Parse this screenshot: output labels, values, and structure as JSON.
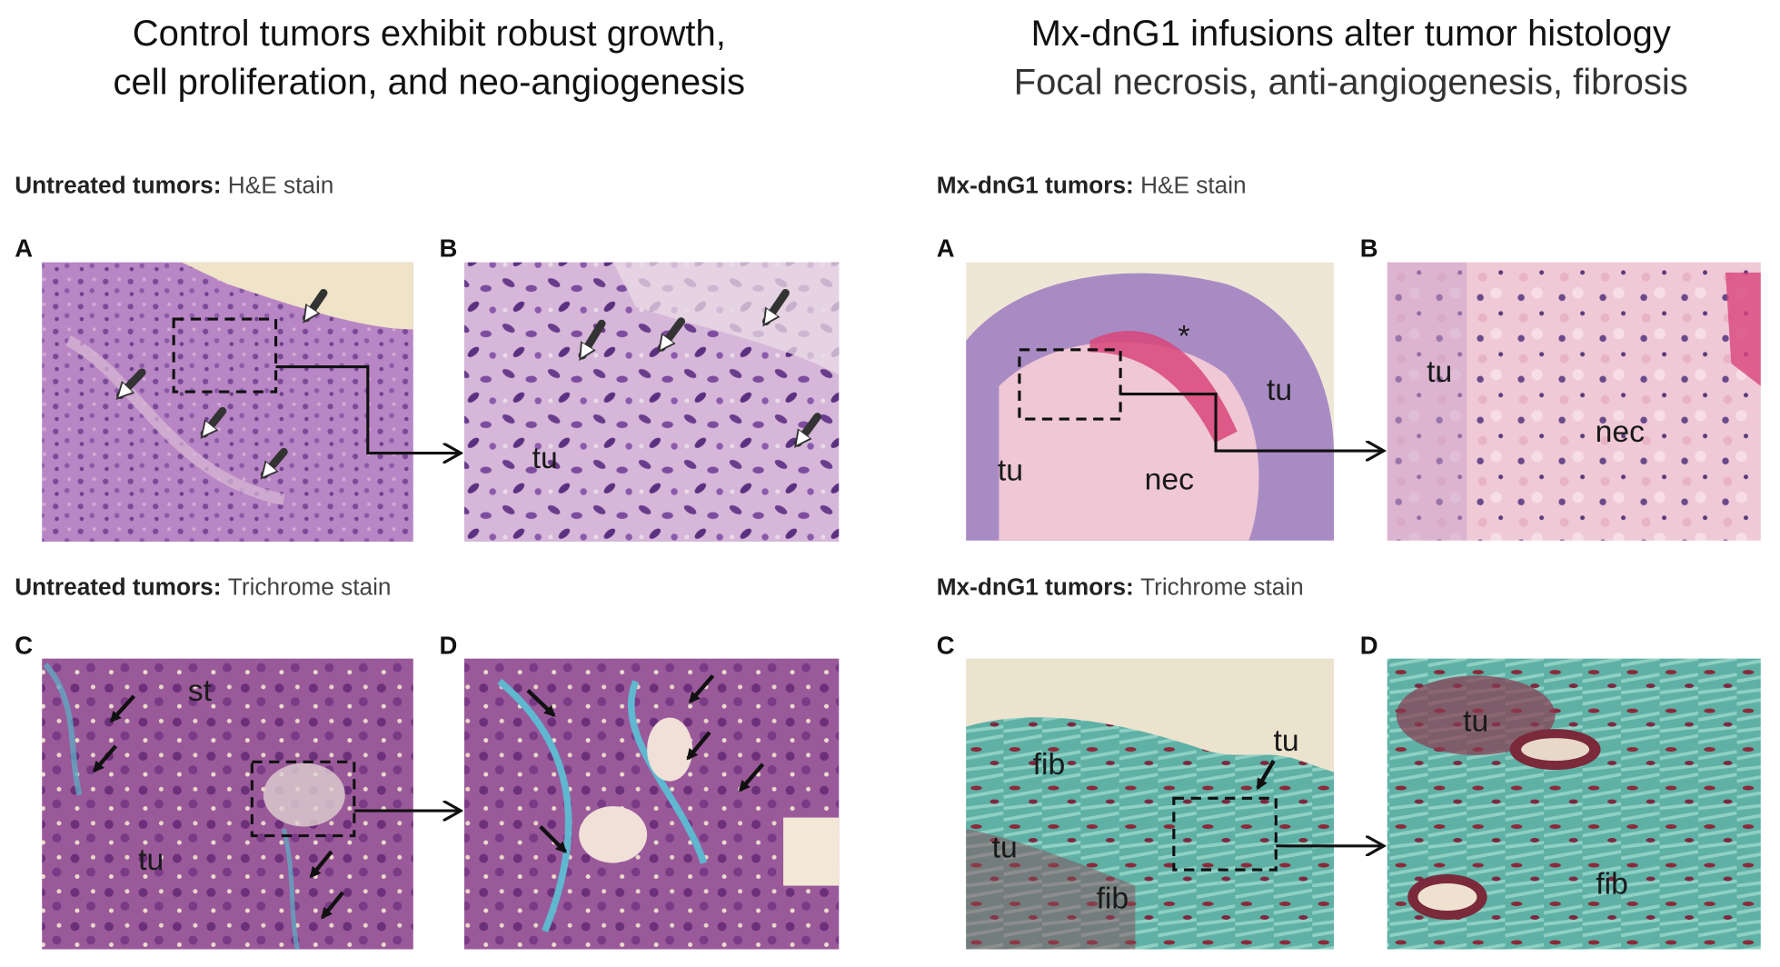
{
  "left": {
    "title": [
      "Control tumors exhibit robust growth,",
      "cell proliferation, and neo-angiogenesis"
    ],
    "rows": [
      {
        "heading_bold": "Untreated tumors:",
        "heading": "H&E stain",
        "panels": [
          {
            "letter": "A"
          },
          {
            "letter": "B",
            "labels": [
              "tu"
            ]
          }
        ]
      },
      {
        "heading_bold": "Untreated tumors:",
        "heading": "Trichrome stain",
        "panels": [
          {
            "letter": "C",
            "labels": [
              "st",
              "tu"
            ]
          },
          {
            "letter": "D"
          }
        ]
      }
    ]
  },
  "right": {
    "title": [
      "Mx-dnG1 infusions alter tumor histology",
      "Focal necrosis, anti-angiogenesis, fibrosis"
    ],
    "rows": [
      {
        "heading_bold": "Mx-dnG1 tumors:",
        "heading": "H&E stain",
        "panels": [
          {
            "letter": "A",
            "labels": [
              "*",
              "tu",
              "tu",
              "nec"
            ]
          },
          {
            "letter": "B",
            "labels": [
              "tu",
              "nec"
            ]
          }
        ]
      },
      {
        "heading_bold": "Mx-dnG1 tumors:",
        "heading": "Trichrome stain",
        "panels": [
          {
            "letter": "C",
            "labels": [
              "fib",
              "tu",
              "tu",
              "fib"
            ]
          },
          {
            "letter": "D",
            "labels": [
              "tu",
              "fib"
            ]
          }
        ]
      }
    ]
  }
}
